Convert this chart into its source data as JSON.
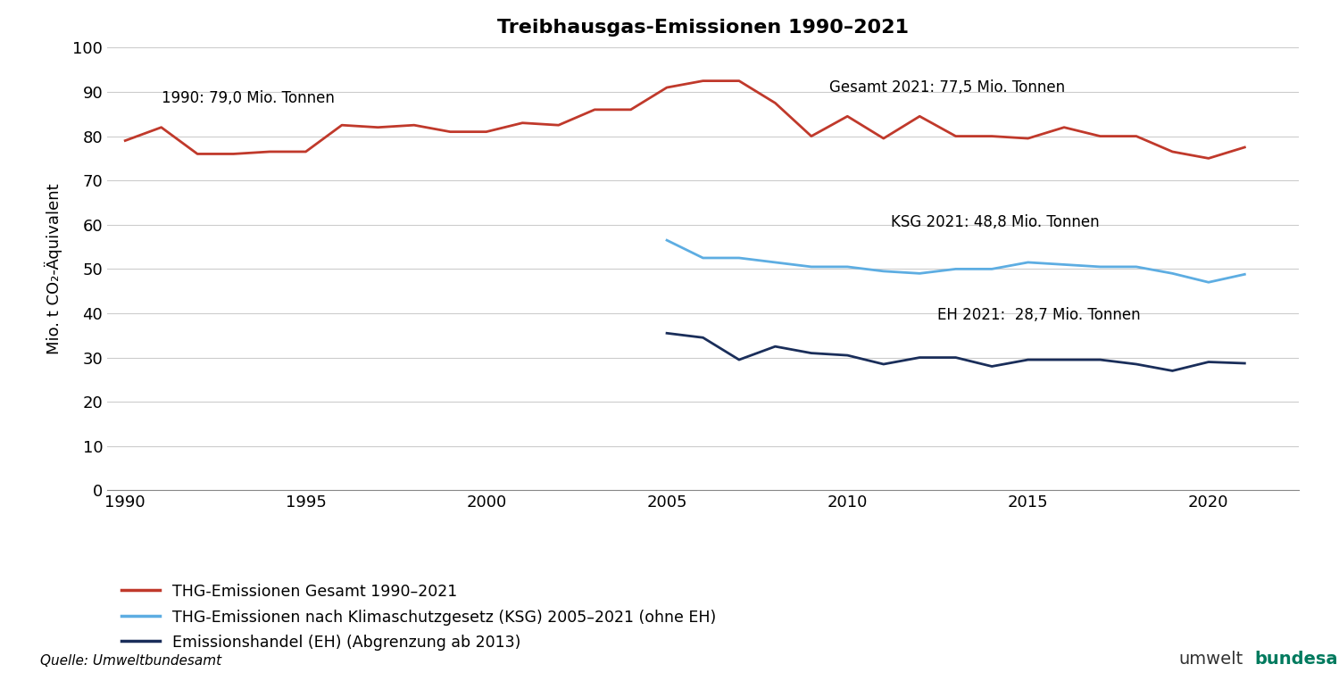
{
  "title": "Treibhausgas-Emissionen 1990–2021",
  "ylabel": "Mio. t CO₂-Äquivalent",
  "source_text": "Quelle: Umweltbundesamt",
  "logo_text_normal": "umwelt",
  "logo_text_bold": "bundesamt",
  "background_color": "#ffffff",
  "annotation_1990": "1990: 79,0 Mio. Tonnen",
  "annotation_gesamt": "Gesamt 2021: 77,5 Mio. Tonnen",
  "annotation_ksg": "KSG 2021: 48,8 Mio. Tonnen",
  "annotation_eh": "EH 2021:  28,7 Mio. Tonnen",
  "legend_entries": [
    "THG-Emissionen Gesamt 1990–2021",
    "THG-Emissionen nach Klimaschutzgesetz (KSG) 2005–2021 (ohne EH)",
    "Emissionshandel (EH) (Abgrenzung ab 2013)"
  ],
  "line_colors": [
    "#c0392b",
    "#5dade2",
    "#1a2e5a"
  ],
  "ylim": [
    0,
    100
  ],
  "yticks": [
    0,
    10,
    20,
    30,
    40,
    50,
    60,
    70,
    80,
    90,
    100
  ],
  "xticks": [
    1990,
    1995,
    2000,
    2005,
    2010,
    2015,
    2020
  ],
  "gesamt_years": [
    1990,
    1991,
    1992,
    1993,
    1994,
    1995,
    1996,
    1997,
    1998,
    1999,
    2000,
    2001,
    2002,
    2003,
    2004,
    2005,
    2006,
    2007,
    2008,
    2009,
    2010,
    2011,
    2012,
    2013,
    2014,
    2015,
    2016,
    2017,
    2018,
    2019,
    2020,
    2021
  ],
  "gesamt_values": [
    79.0,
    82.0,
    76.0,
    76.0,
    76.5,
    76.5,
    82.5,
    82.0,
    82.5,
    81.0,
    81.0,
    83.0,
    82.5,
    86.0,
    86.0,
    91.0,
    92.5,
    92.5,
    87.5,
    80.0,
    84.5,
    79.5,
    84.5,
    80.0,
    80.0,
    79.5,
    82.0,
    80.0,
    80.0,
    76.5,
    75.0,
    77.5
  ],
  "ksg_years": [
    2005,
    2006,
    2007,
    2008,
    2009,
    2010,
    2011,
    2012,
    2013,
    2014,
    2015,
    2016,
    2017,
    2018,
    2019,
    2020,
    2021
  ],
  "ksg_values": [
    56.5,
    52.5,
    52.5,
    51.5,
    50.5,
    50.5,
    49.5,
    49.0,
    50.0,
    50.0,
    51.5,
    51.0,
    50.5,
    50.5,
    49.0,
    47.0,
    48.8
  ],
  "eh_years": [
    2005,
    2006,
    2007,
    2008,
    2009,
    2010,
    2011,
    2012,
    2013,
    2014,
    2015,
    2016,
    2017,
    2018,
    2019,
    2020,
    2021
  ],
  "eh_values": [
    35.5,
    34.5,
    29.5,
    32.5,
    31.0,
    30.5,
    28.5,
    30.0,
    30.0,
    28.0,
    29.5,
    29.5,
    29.5,
    28.5,
    27.0,
    29.0,
    28.7
  ],
  "xmin": 1989.5,
  "xmax": 2022.5
}
